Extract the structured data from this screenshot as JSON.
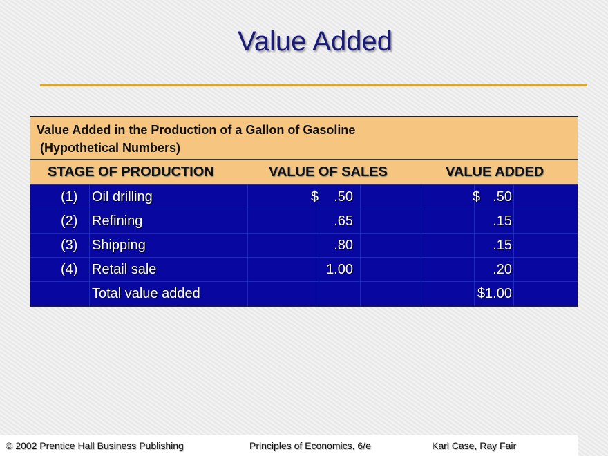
{
  "title": "Value Added",
  "table": {
    "caption_line1": "Value Added in the Production of a Gallon of Gasoline",
    "caption_line2": "(Hypothetical Numbers)",
    "headers": [
      "STAGE OF PRODUCTION",
      "VALUE OF SALES",
      "VALUE ADDED"
    ],
    "rows": [
      {
        "num": "(1)",
        "stage": "Oil drilling",
        "sales_sign": "$",
        "sales": ".50",
        "added_sign": "$",
        "added": ".50"
      },
      {
        "num": "(2)",
        "stage": "Refining",
        "sales_sign": "",
        "sales": ".65",
        "added_sign": "",
        "added": ".15"
      },
      {
        "num": "(3)",
        "stage": "Shipping",
        "sales_sign": "",
        "sales": ".80",
        "added_sign": "",
        "added": ".15"
      },
      {
        "num": "(4)",
        "stage": "Retail sale",
        "sales_sign": "",
        "sales": "1.00",
        "added_sign": "",
        "added": ".20"
      },
      {
        "num": "",
        "stage": "Total value added",
        "sales_sign": "",
        "sales": "",
        "added_sign": "",
        "added": "$1.00"
      }
    ]
  },
  "footer": {
    "copyright": "© 2002 Prentice Hall Business Publishing",
    "book": "Principles of Economics, 6/e",
    "authors": "Karl Case, Ray Fair"
  },
  "colors": {
    "title": "#1a1a7a",
    "accent_rule": "#e8a317",
    "header_bg": "#f6c57f",
    "body_bg": "#0808a0"
  }
}
